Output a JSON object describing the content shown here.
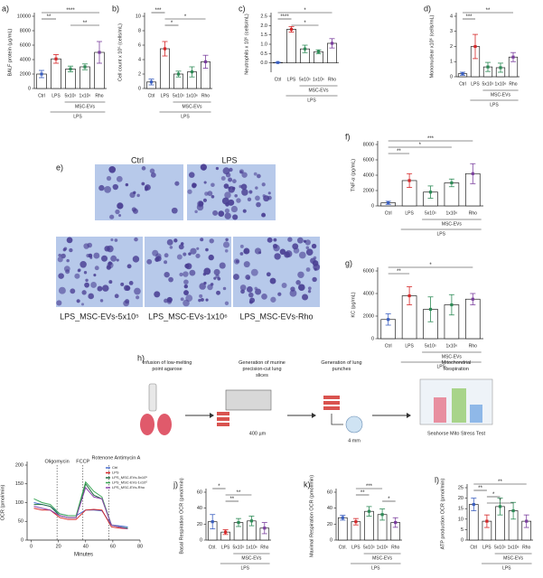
{
  "chart_data": [
    {
      "type": "bar",
      "panel": "a)",
      "ylabel": "BALF protein (µg/mL)",
      "categories": [
        "Ctrl",
        "LPS",
        "5x10⁵",
        "1x10⁶",
        "Rho"
      ],
      "values": [
        2000,
        4100,
        2700,
        3000,
        5000
      ],
      "errors": [
        500,
        600,
        400,
        400,
        1500
      ],
      "colors": [
        "#3b5fc0",
        "#d62728",
        "#2e8b57",
        "#2e8b57",
        "#7b3f9e"
      ],
      "ylim": [
        0,
        10000
      ],
      "yticks": [
        0,
        2000,
        4000,
        6000,
        8000,
        10000
      ],
      "groups": {
        "inner": "MSC-EVs",
        "outer": "LPS"
      },
      "significance": [
        {
          "from": 0,
          "to": 4,
          "label": "****"
        },
        {
          "from": 0,
          "to": 1,
          "label": "**"
        },
        {
          "from": 2,
          "to": 4,
          "label": "**"
        }
      ]
    },
    {
      "type": "bar",
      "panel": "b)",
      "ylabel": "Cell count x 10⁵ (cells/mL)",
      "categories": [
        "Ctrl",
        "LPS",
        "5x10⁵",
        "1x10⁶",
        "Rho"
      ],
      "values": [
        0.9,
        5.5,
        2.0,
        2.3,
        3.7
      ],
      "errors": [
        0.4,
        1.0,
        0.4,
        0.7,
        0.9
      ],
      "colors": [
        "#3b5fc0",
        "#d62728",
        "#2e8b57",
        "#2e8b57",
        "#7b3f9e"
      ],
      "ylim": [
        0,
        10
      ],
      "yticks": [
        0,
        2,
        4,
        6,
        8,
        10
      ],
      "groups": {
        "inner": "MSC-EVs",
        "outer": "LPS"
      },
      "significance": [
        {
          "from": 0,
          "to": 1,
          "label": "***"
        },
        {
          "from": 1,
          "to": 4,
          "label": "*"
        },
        {
          "from": 1,
          "to": 2,
          "label": "*"
        }
      ]
    },
    {
      "type": "bar",
      "panel": "c)",
      "ylabel": "Neutrophils x 10⁵ (cells/mL)",
      "categories": [
        "Ctrl",
        "LPS",
        "5x10⁵",
        "1x10⁶",
        "Rho"
      ],
      "values": [
        0.02,
        1.8,
        0.75,
        0.6,
        1.05
      ],
      "errors": [
        0.02,
        0.15,
        0.2,
        0.1,
        0.25
      ],
      "colors": [
        "#3b5fc0",
        "#d62728",
        "#2e8b57",
        "#2e8b57",
        "#7b3f9e"
      ],
      "ylim": [
        -0.5,
        2.5
      ],
      "yticks": [
        {
          "value": 0,
          "label": "0.0"
        },
        0.5,
        {
          "value": 1,
          "label": "1.0"
        },
        1.5,
        {
          "value": 2,
          "label": "2.0"
        },
        2.5
      ],
      "groups": {
        "inner": "MSC-EVs",
        "outer": "LPS"
      },
      "significance": [
        {
          "from": 0,
          "to": 4,
          "label": "*"
        },
        {
          "from": 0,
          "to": 1,
          "label": "****"
        },
        {
          "from": 1,
          "to": 3,
          "label": "*"
        }
      ]
    },
    {
      "type": "bar",
      "panel": "d)",
      "ylabel": "Mononuclear x10⁵ (cells/mL)",
      "categories": [
        "Ctrl",
        "LPS",
        "5x10⁵",
        "1x10⁶",
        "Rho"
      ],
      "values": [
        0.2,
        2.0,
        0.65,
        0.6,
        1.3
      ],
      "errors": [
        0.1,
        0.8,
        0.3,
        0.3,
        0.3
      ],
      "colors": [
        "#3b5fc0",
        "#d62728",
        "#2e8b57",
        "#2e8b57",
        "#7b3f9e"
      ],
      "ylim": [
        0,
        4
      ],
      "yticks": [
        0,
        1,
        2,
        3,
        4
      ],
      "groups": {
        "inner": "MSC-EVs",
        "outer": "LPS"
      },
      "significance": [
        {
          "from": 0,
          "to": 4,
          "label": "**"
        },
        {
          "from": 0,
          "to": 1,
          "label": "***"
        }
      ]
    },
    {
      "type": "bar",
      "panel": "f)",
      "ylabel": "TNF-α (pg/mL)",
      "categories": [
        "Ctrl",
        "LPS",
        "5x10⁵",
        "1x10⁶",
        "Rho"
      ],
      "values": [
        400,
        3300,
        1800,
        3000,
        4200
      ],
      "errors": [
        200,
        900,
        800,
        500,
        1300
      ],
      "colors": [
        "#3b5fc0",
        "#d62728",
        "#2e8b57",
        "#2e8b57",
        "#7b3f9e"
      ],
      "ylim": [
        0,
        8000
      ],
      "yticks": [
        0,
        2000,
        4000,
        6000,
        8000
      ],
      "groups": {
        "inner": "MSC-EVs",
        "outer": "LPS"
      },
      "significance": [
        {
          "from": 0,
          "to": 4,
          "label": "***"
        },
        {
          "from": 0,
          "to": 3,
          "label": "*"
        },
        {
          "from": 0,
          "to": 1,
          "label": "**"
        }
      ]
    },
    {
      "type": "bar",
      "panel": "g)",
      "ylabel": "KC (pg/mL)",
      "categories": [
        "Ctrl",
        "LPS",
        "5x10⁵",
        "1x10⁶",
        "Rho"
      ],
      "values": [
        1700,
        3800,
        2600,
        3000,
        3500
      ],
      "errors": [
        500,
        800,
        1100,
        900,
        500
      ],
      "colors": [
        "#3b5fc0",
        "#d62728",
        "#2e8b57",
        "#2e8b57",
        "#7b3f9e"
      ],
      "ylim": [
        0,
        6000
      ],
      "yticks": [
        0,
        2000,
        4000,
        6000
      ],
      "groups": {
        "inner": "MSC-EVs",
        "outer": "LPS"
      },
      "significance": [
        {
          "from": 0,
          "to": 4,
          "label": "*"
        },
        {
          "from": 0,
          "to": 1,
          "label": "**"
        }
      ]
    },
    {
      "type": "line",
      "panel": "i)",
      "xlabel": "Minutes",
      "ylabel": "OCR (pmol/min)",
      "x": [
        2,
        8,
        14,
        21,
        27,
        33,
        40,
        46,
        52,
        59,
        65,
        71
      ],
      "xlim": [
        -3,
        80
      ],
      "xticks": [
        0,
        20,
        40,
        60,
        80
      ],
      "ylim": [
        0,
        200
      ],
      "yticks": [
        0,
        50,
        100,
        150,
        200
      ],
      "annotations": [
        {
          "x": 19,
          "label": "Oligomycin"
        },
        {
          "x": 38,
          "label": "FCCP"
        },
        {
          "x": 57,
          "label": "Rotenone Antimycin A"
        }
      ],
      "series": [
        {
          "name": "Ctrl",
          "color": "#4a6fd1",
          "values": [
            100,
            95,
            90,
            70,
            65,
            65,
            80,
            80,
            78,
            40,
            38,
            35
          ]
        },
        {
          "name": "LPS",
          "color": "#d62728",
          "values": [
            85,
            80,
            80,
            60,
            55,
            55,
            80,
            82,
            80,
            35,
            32,
            30
          ]
        },
        {
          "name": "LPS_MSC-EVs-5x10⁵",
          "color": "#1f6f3f",
          "values": [
            95,
            95,
            90,
            65,
            60,
            60,
            150,
            120,
            110,
            40,
            35,
            30
          ]
        },
        {
          "name": "LPS_MSC-EVs-1x10⁶",
          "color": "#3aa655",
          "values": [
            110,
            100,
            95,
            70,
            65,
            65,
            155,
            130,
            115,
            40,
            35,
            32
          ]
        },
        {
          "name": "LPS_MSC-EVs-Rho",
          "color": "#8e44ad",
          "values": [
            90,
            85,
            80,
            65,
            60,
            60,
            140,
            115,
            110,
            40,
            35,
            30
          ]
        }
      ]
    },
    {
      "type": "bar",
      "panel": "j)",
      "ylabel": "Basal Respiration OCR (pmol/min)",
      "categories": [
        "Ctrl.",
        "LPS",
        "5x10⁵",
        "1x10⁶",
        "Rho"
      ],
      "values": [
        23,
        10,
        22,
        24,
        15
      ],
      "errors": [
        9,
        3,
        5,
        6,
        7
      ],
      "colors": [
        "#3b5fc0",
        "#d62728",
        "#2e8b57",
        "#2e8b57",
        "#7b3f9e"
      ],
      "ylim": [
        0,
        60
      ],
      "yticks": [
        0,
        20,
        40,
        60
      ],
      "groups": {
        "inner": "MSC-EVs",
        "outer": "LPS"
      },
      "significance": [
        {
          "from": 0,
          "to": 1,
          "label": "*"
        },
        {
          "from": 1,
          "to": 3,
          "label": "**"
        },
        {
          "from": 1,
          "to": 2,
          "label": "**"
        }
      ]
    },
    {
      "type": "bar",
      "panel": "k)",
      "ylabel": "Maximal Respiration OCR (pmol/min)",
      "categories": [
        "Ctrl.",
        "LPS",
        "5x10⁵",
        "1x10⁶",
        "Rho"
      ],
      "values": [
        28,
        23,
        36,
        32,
        22
      ],
      "errors": [
        3,
        4,
        6,
        7,
        6
      ],
      "colors": [
        "#3b5fc0",
        "#d62728",
        "#2e8b57",
        "#2e8b57",
        "#7b3f9e"
      ],
      "ylim": [
        0,
        60
      ],
      "yticks": [
        0,
        20,
        40,
        60
      ],
      "groups": {
        "inner": "MSC-EVs",
        "outer": "LPS"
      },
      "significance": [
        {
          "from": 1,
          "to": 3,
          "label": "***"
        },
        {
          "from": 1,
          "to": 2,
          "label": "**"
        },
        {
          "from": 3,
          "to": 4,
          "label": "*"
        }
      ]
    },
    {
      "type": "bar",
      "panel": "l)",
      "ylabel": "ATP production OCR (pmol/min)",
      "categories": [
        "Ctrl",
        "LPS",
        "5x10⁵",
        "1x10⁶",
        "Rho"
      ],
      "values": [
        17,
        9,
        16,
        14,
        9
      ],
      "errors": [
        3,
        3,
        4,
        4,
        3
      ],
      "colors": [
        "#3b5fc0",
        "#d62728",
        "#2e8b57",
        "#2e8b57",
        "#7b3f9e"
      ],
      "ylim": [
        0,
        25
      ],
      "yticks": [
        0,
        5,
        10,
        15,
        20,
        25
      ],
      "groups": {
        "inner": "MSC-EVs",
        "outer": "LPS"
      },
      "significance": [
        {
          "from": 0,
          "to": 4,
          "label": "**"
        },
        {
          "from": 0,
          "to": 1,
          "label": "**"
        },
        {
          "from": 1,
          "to": 2,
          "label": "*"
        },
        {
          "from": 1,
          "to": 3,
          "label": "*"
        }
      ]
    }
  ],
  "micrographs": {
    "panel": "e)",
    "labels": [
      "Ctrl",
      "LPS",
      "LPS_MSC-EVs-5x10⁵",
      "LPS_MSC-EVs-1x10⁶",
      "LPS_MSC-EVs-Rho"
    ]
  },
  "diagram": {
    "panel": "h)",
    "steps": [
      "Infusion of low-melting point agarose",
      "Generation of murine precision-cut lung slices",
      "Generation of lung punches",
      "Mitochondrial Respiration"
    ],
    "slice_thickness": "400 µm",
    "punch_size": "4 mm",
    "assay": "Seahorse Mito Stress Test"
  }
}
